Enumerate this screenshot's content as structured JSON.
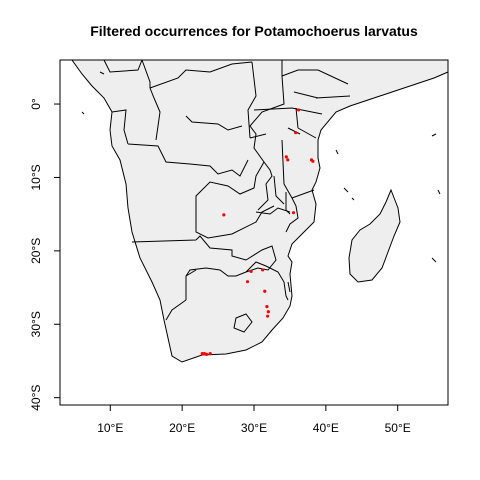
{
  "chart_data": {
    "type": "scatter",
    "title": "Filtered occurrences for Potamochoerus larvatus",
    "xlabel": "",
    "ylabel": "",
    "xlim": [
      3,
      57
    ],
    "ylim": [
      -41,
      6
    ],
    "x_ticks": [
      {
        "value": 10,
        "label": "10°E"
      },
      {
        "value": 20,
        "label": "20°E"
      },
      {
        "value": 30,
        "label": "30°E"
      },
      {
        "value": 40,
        "label": "40°E"
      },
      {
        "value": 50,
        "label": "50°E"
      }
    ],
    "y_ticks": [
      {
        "value": 0,
        "label": "0°"
      },
      {
        "value": -10,
        "label": "10°S"
      },
      {
        "value": -20,
        "label": "20°S"
      },
      {
        "value": -30,
        "label": "30°S"
      },
      {
        "value": -40,
        "label": "40°S"
      }
    ],
    "grid": false,
    "colors": {
      "land": "#eeeeee",
      "border": "#000000",
      "points": "#ff0000"
    },
    "series": [
      {
        "x": [
          36.2,
          35.8,
          34.5,
          34.7,
          38.0,
          38.2,
          35.5,
          25.8,
          29.6,
          29.1,
          31.2,
          31.5,
          31.8,
          32.0,
          31.9,
          22.8,
          23.1,
          23.4,
          23.9
        ],
        "y": [
          -0.8,
          -3.9,
          -7.2,
          -7.6,
          -7.6,
          -7.8,
          -14.8,
          -15.1,
          -22.8,
          -24.2,
          -22.6,
          -25.5,
          -27.6,
          -28.3,
          -28.9,
          -34.0,
          -34.0,
          -34.1,
          -34.0
        ]
      }
    ]
  }
}
